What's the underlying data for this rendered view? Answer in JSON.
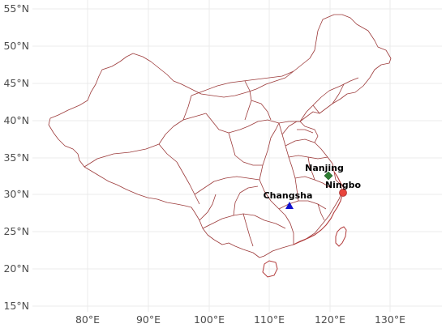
{
  "map": {
    "x_ticks": [
      "80°E",
      "90°E",
      "100°E",
      "110°E",
      "120°E",
      "130°E"
    ],
    "y_ticks": [
      "55°N",
      "50°N",
      "45°N",
      "40°N",
      "35°N",
      "30°N",
      "25°N",
      "20°N",
      "15°N"
    ],
    "lon_range": [
      72,
      138
    ],
    "lat_range": [
      14,
      57
    ],
    "cities": [
      {
        "name": "Nanjing",
        "lon": 119.8,
        "lat": 32.0,
        "marker": "diamond",
        "color": "#2e7d32"
      },
      {
        "name": "Ningbo",
        "lon": 122.5,
        "lat": 29.8,
        "marker": "circle",
        "color": "#e8453c"
      },
      {
        "name": "Changsha",
        "lon": 114.4,
        "lat": 28.2,
        "marker": "triangle",
        "color": "#1010cc"
      }
    ],
    "colors": {
      "border": "#9c3a3a",
      "grid": "#ebebeb",
      "tick_text": "#4d4d4d"
    }
  }
}
